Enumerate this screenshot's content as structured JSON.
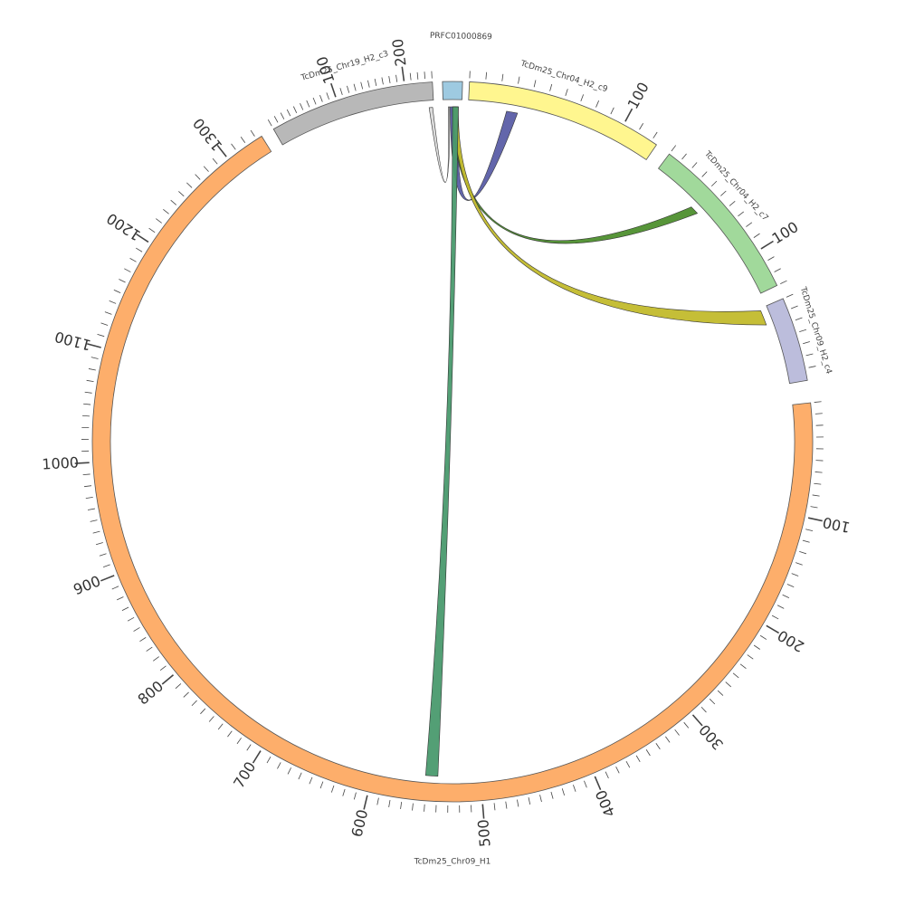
{
  "diagram": {
    "type": "circos",
    "segments": [
      {
        "id": "PRFC01000869",
        "label": "PRFC01000869",
        "color": "#9ecae1",
        "length": 6,
        "tick_labels": []
      },
      {
        "id": "c9",
        "label": "TcDm25_Chr04_H2_c9",
        "color": "#fff68f",
        "length": 124,
        "tick_labels": [
          "100"
        ]
      },
      {
        "id": "c7",
        "label": "TcDm25_Chr04_H2_c7",
        "color": "#a1d99b",
        "length": 130,
        "tick_labels": [
          "100"
        ]
      },
      {
        "id": "c4",
        "label": "TcDm25_Chr09_H2_c4",
        "color": "#bcbddc",
        "length": 70,
        "tick_labels": []
      },
      {
        "id": "h1",
        "label": "TcDm25_Chr09_H1",
        "color": "#fdae6b",
        "length": 1335,
        "tick_labels": [
          "100",
          "200",
          "300",
          "400",
          "500",
          "600",
          "700",
          "800",
          "900",
          "1000",
          "1100",
          "1200",
          "1300"
        ]
      },
      {
        "id": "c3",
        "label": "TcDm25_Chr19_H2_c3",
        "color": "#b8b8b8",
        "length": 240,
        "tick_labels": [
          "100",
          "200"
        ]
      }
    ],
    "links": [
      {
        "from": "PRFC01000869",
        "to": "c3",
        "color": "#d9d9d9"
      },
      {
        "from": "PRFC01000869",
        "to": "c9",
        "color": "#5b5ea6"
      },
      {
        "from": "PRFC01000869",
        "to": "c7",
        "color": "#4e8f2e"
      },
      {
        "from": "PRFC01000869",
        "to": "c4",
        "color": "#c2bb2c"
      },
      {
        "from": "PRFC01000869",
        "to": "h1",
        "color": "#4a9a6e"
      }
    ]
  }
}
